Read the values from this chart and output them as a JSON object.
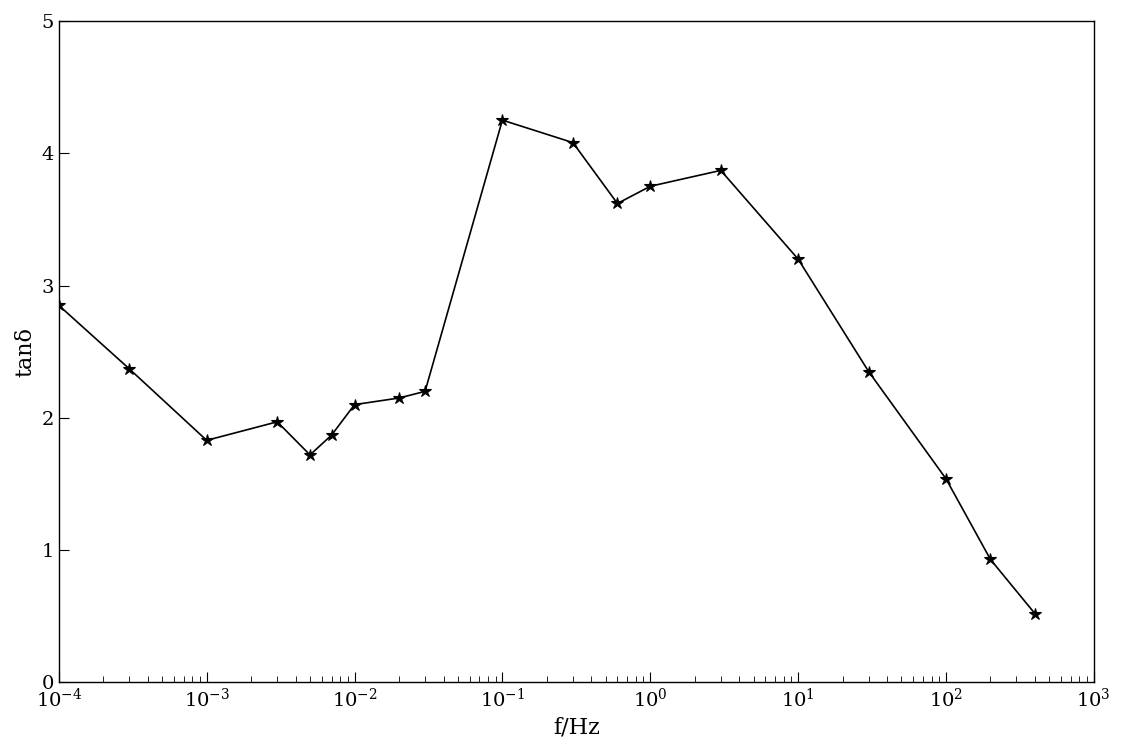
{
  "x": [
    0.0001,
    0.0003,
    0.001,
    0.003,
    0.005,
    0.007,
    0.01,
    0.02,
    0.03,
    0.1,
    0.3,
    0.6,
    1.0,
    3.0,
    10.0,
    30.0,
    100.0,
    200.0,
    400.0
  ],
  "y": [
    2.85,
    2.37,
    1.83,
    1.97,
    1.72,
    1.87,
    2.1,
    2.15,
    2.2,
    4.25,
    4.08,
    3.62,
    3.75,
    3.87,
    3.2,
    2.35,
    1.54,
    0.93,
    0.52
  ],
  "line_color": "#000000",
  "marker": "*",
  "marker_size": 9,
  "linewidth": 1.2,
  "xlabel": "f/Hz",
  "ylabel": "tanδ",
  "xlim": [
    0.0001,
    1000.0
  ],
  "ylim": [
    0,
    5
  ],
  "yticks": [
    0,
    1,
    2,
    3,
    4,
    5
  ],
  "background_color": "#ffffff",
  "label_fontsize": 16,
  "tick_fontsize": 14
}
